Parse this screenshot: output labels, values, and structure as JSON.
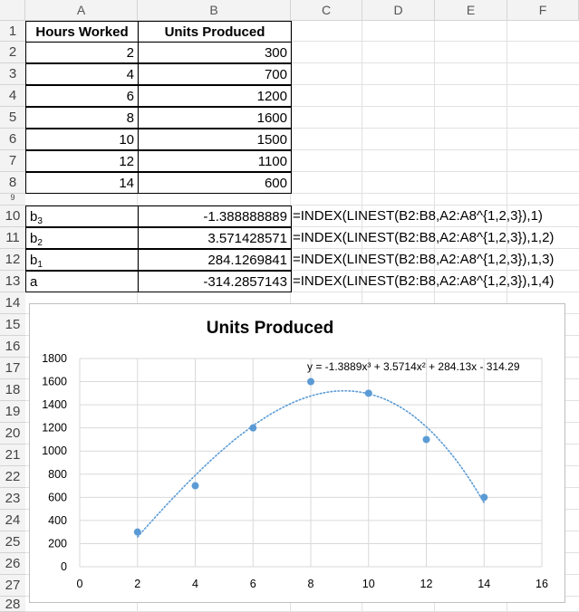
{
  "columns": [
    "A",
    "B",
    "C",
    "D",
    "E",
    "F"
  ],
  "rows": [
    "1",
    "2",
    "3",
    "4",
    "5",
    "6",
    "7",
    "8",
    "9",
    "10",
    "11",
    "12",
    "13",
    "14",
    "15",
    "16",
    "17",
    "18",
    "19",
    "20",
    "21",
    "22",
    "23",
    "24",
    "25",
    "26",
    "27",
    "28"
  ],
  "table": {
    "headers": [
      "Hours Worked",
      "Units Produced"
    ],
    "data": [
      [
        "2",
        "300"
      ],
      [
        "4",
        "700"
      ],
      [
        "6",
        "1200"
      ],
      [
        "8",
        "1600"
      ],
      [
        "10",
        "1500"
      ],
      [
        "12",
        "1100"
      ],
      [
        "14",
        "600"
      ]
    ]
  },
  "coefficients": [
    {
      "label": "b",
      "sub": "3",
      "value": "-1.388888889",
      "formula": "=INDEX(LINEST(B2:B8,A2:A8^{1,2,3}),1)"
    },
    {
      "label": "b",
      "sub": "2",
      "value": "3.571428571",
      "formula": "=INDEX(LINEST(B2:B8,A2:A8^{1,2,3}),1,2)"
    },
    {
      "label": "b",
      "sub": "1",
      "value": "284.1269841",
      "formula": "=INDEX(LINEST(B2:B8,A2:A8^{1,2,3}),1,3)"
    },
    {
      "label": "a",
      "sub": "",
      "value": "-314.2857143",
      "formula": "=INDEX(LINEST(B2:B8,A2:A8^{1,2,3}),1,4)"
    }
  ],
  "colors": {
    "point": "#5b9bd5",
    "trendline": "#5b9bd5",
    "grid": "#d9d9d9"
  },
  "chart_data": {
    "type": "scatter",
    "title": "Units Produced",
    "x": [
      2,
      4,
      6,
      8,
      10,
      12,
      14
    ],
    "y": [
      300,
      700,
      1200,
      1600,
      1500,
      1100,
      600
    ],
    "xlim": [
      0,
      16
    ],
    "ylim": [
      0,
      1800
    ],
    "xticks": [
      "0",
      "2",
      "4",
      "6",
      "8",
      "10",
      "12",
      "14",
      "16"
    ],
    "yticks": [
      "0",
      "200",
      "400",
      "600",
      "800",
      "1000",
      "1200",
      "1400",
      "1600",
      "1800"
    ],
    "trendline": {
      "type": "polynomial",
      "order": 3,
      "coefficients": [
        -1.388888889,
        3.571428571,
        284.1269841,
        -314.2857143
      ],
      "equation": "y = -1.3889x³ + 3.5714x² + 284.13x - 314.29"
    },
    "grid": true,
    "legend": false
  }
}
